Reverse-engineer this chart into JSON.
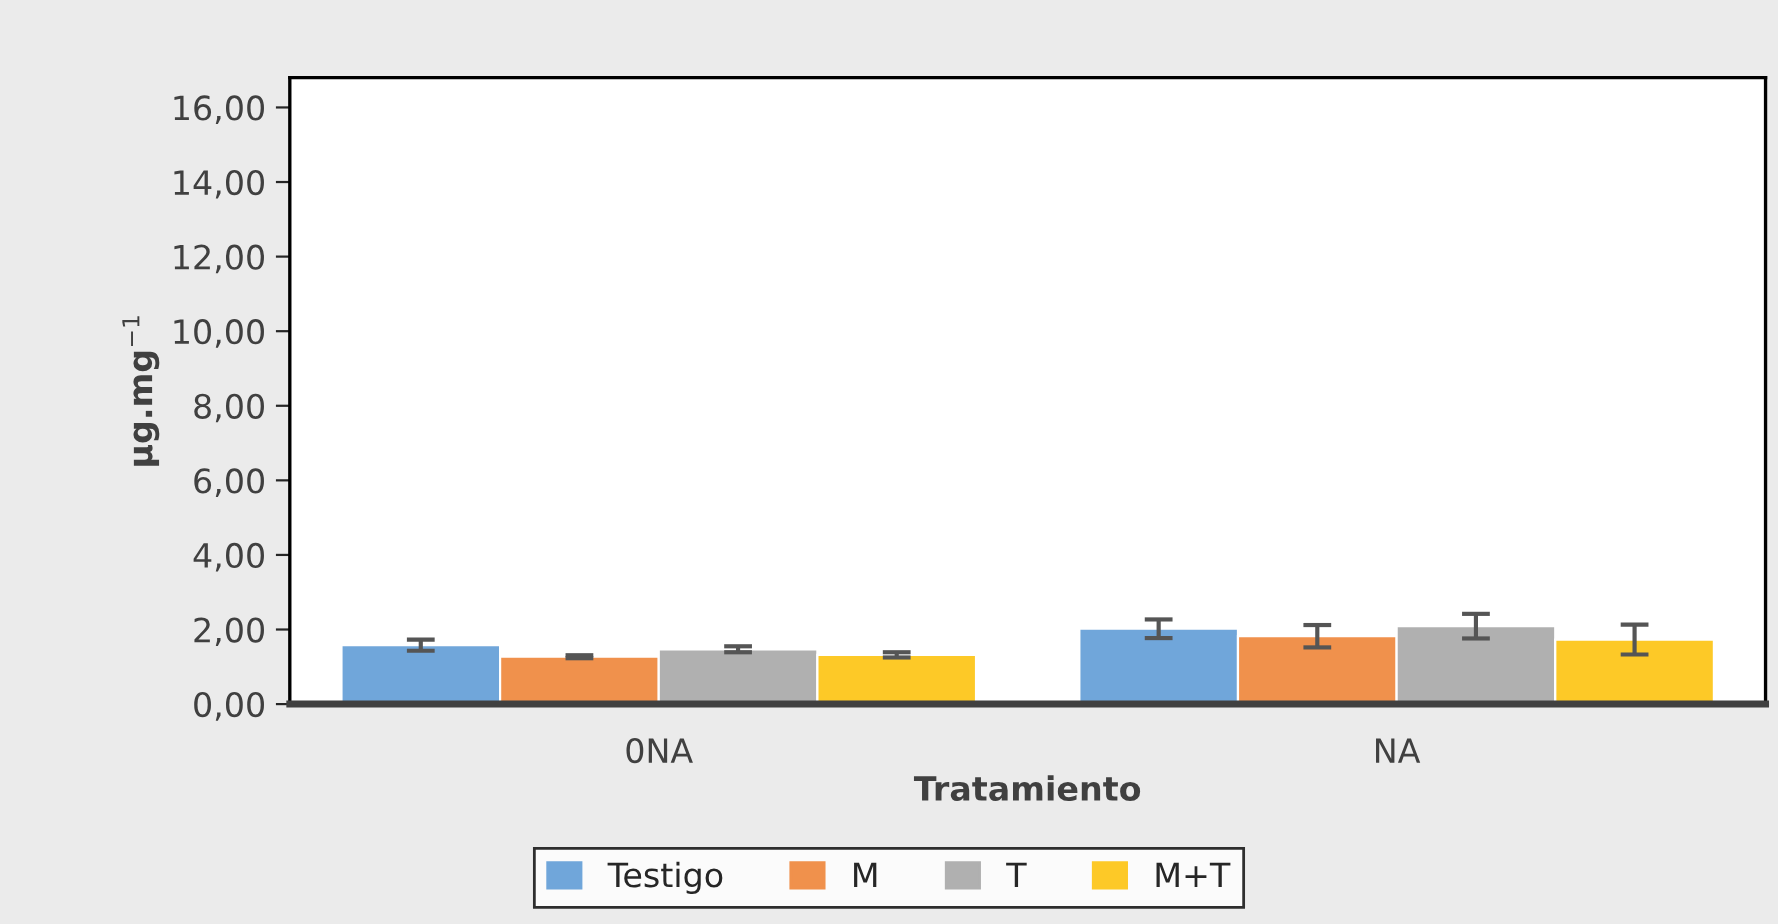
{
  "chart_data": {
    "type": "bar",
    "xlabel": "Tratamiento",
    "ylabel": "µg.mg$^{−1}$",
    "categories": [
      "0NA",
      "NA"
    ],
    "series": [
      {
        "name": "Testigo",
        "color": "#70a6da",
        "values": [
          1.58,
          2.02
        ],
        "errors": [
          0.15,
          0.25
        ]
      },
      {
        "name": "M",
        "color": "#f0914c",
        "values": [
          1.27,
          1.82
        ],
        "errors": [
          0.04,
          0.3
        ]
      },
      {
        "name": "T",
        "color": "#b0b0b0",
        "values": [
          1.47,
          2.09
        ],
        "errors": [
          0.08,
          0.33
        ]
      },
      {
        "name": "M+T",
        "color": "#fdc927",
        "values": [
          1.32,
          1.73
        ],
        "errors": [
          0.07,
          0.4
        ]
      }
    ],
    "ylim": [
      0,
      16.8
    ],
    "yticks": [
      {
        "value": 0,
        "label": "0,00"
      },
      {
        "value": 2,
        "label": "2,00"
      },
      {
        "value": 4,
        "label": "4,00"
      },
      {
        "value": 6,
        "label": "6,00"
      },
      {
        "value": 8,
        "label": "8,00"
      },
      {
        "value": 10,
        "label": "10,00"
      },
      {
        "value": 12,
        "label": "12,00"
      },
      {
        "value": 14,
        "label": "14,00"
      },
      {
        "value": 16,
        "label": "16,00"
      }
    ],
    "grid": false,
    "legend": "bottom"
  }
}
